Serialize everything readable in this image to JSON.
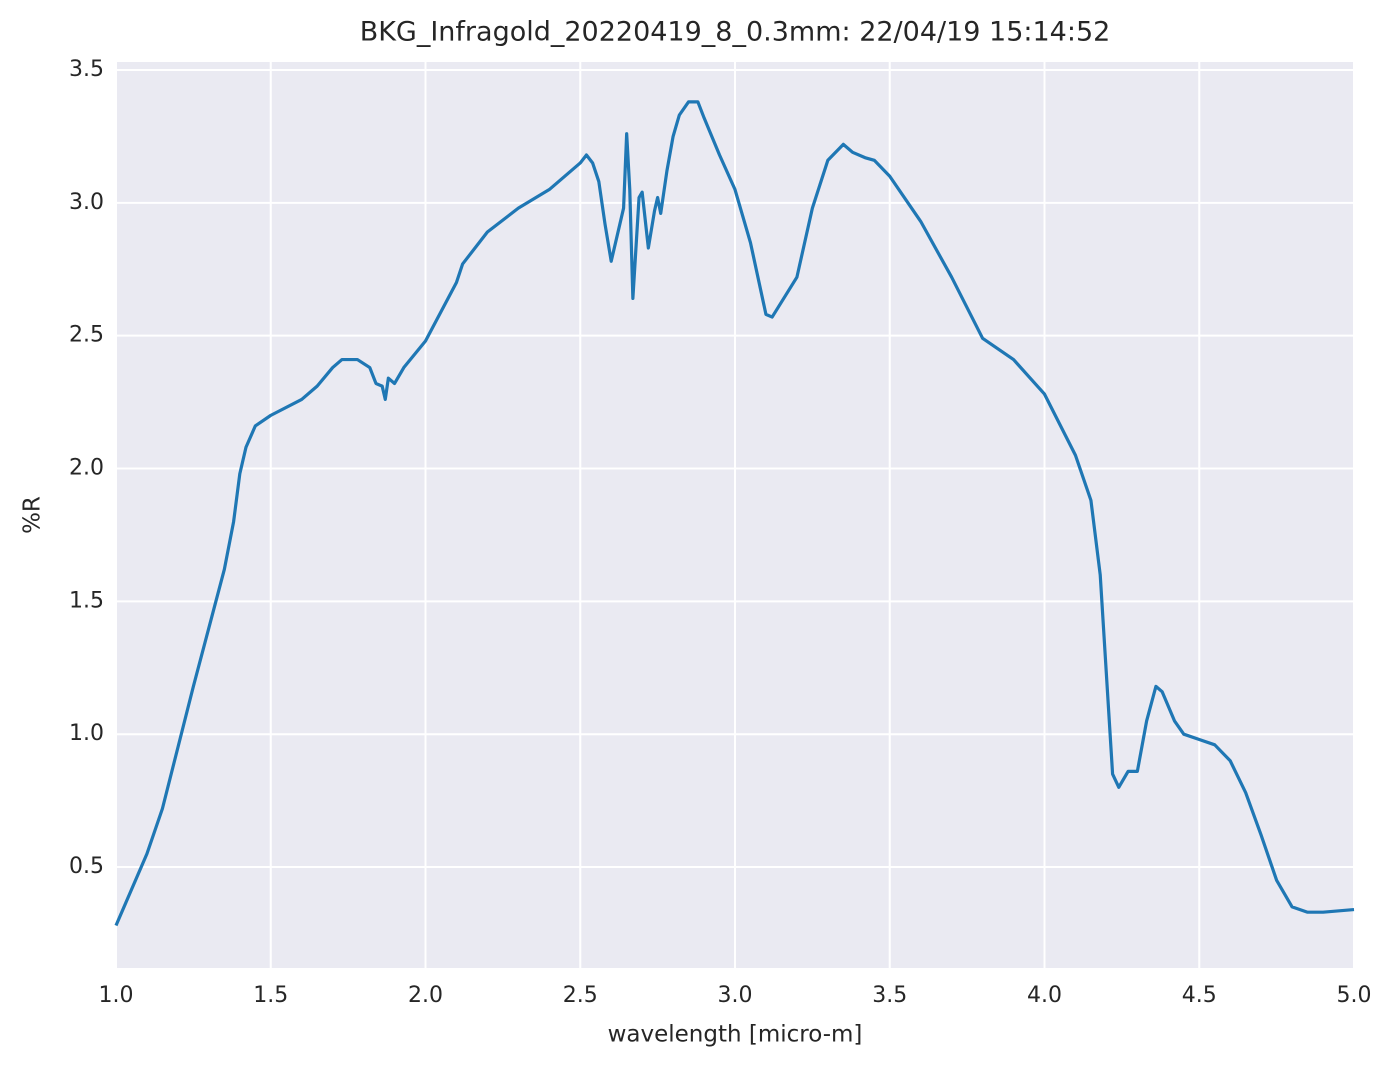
{
  "chart_data": {
    "type": "line",
    "title": "BKG_Infragold_20220419_8_0.3mm:  22/04/19 15:14:52",
    "x_label": "wavelength [micro-m]",
    "y_label": "%R",
    "x": [
      1.0,
      1.1,
      1.15,
      1.2,
      1.25,
      1.3,
      1.35,
      1.38,
      1.4,
      1.42,
      1.45,
      1.5,
      1.6,
      1.65,
      1.7,
      1.73,
      1.78,
      1.82,
      1.84,
      1.86,
      1.87,
      1.88,
      1.9,
      1.93,
      2.0,
      2.1,
      2.12,
      2.2,
      2.3,
      2.4,
      2.5,
      2.52,
      2.54,
      2.56,
      2.58,
      2.6,
      2.62,
      2.64,
      2.65,
      2.66,
      2.67,
      2.69,
      2.7,
      2.72,
      2.74,
      2.75,
      2.76,
      2.78,
      2.8,
      2.82,
      2.85,
      2.88,
      2.9,
      2.95,
      3.0,
      3.05,
      3.1,
      3.12,
      3.2,
      3.25,
      3.3,
      3.35,
      3.38,
      3.42,
      3.45,
      3.5,
      3.6,
      3.7,
      3.8,
      3.9,
      4.0,
      4.1,
      4.15,
      4.18,
      4.22,
      4.24,
      4.27,
      4.3,
      4.33,
      4.36,
      4.38,
      4.42,
      4.45,
      4.5,
      4.55,
      4.6,
      4.65,
      4.7,
      4.75,
      4.8,
      4.85,
      4.9,
      5.0
    ],
    "values": [
      0.28,
      0.55,
      0.72,
      0.95,
      1.18,
      1.4,
      1.62,
      1.8,
      1.98,
      2.08,
      2.16,
      2.2,
      2.26,
      2.31,
      2.38,
      2.41,
      2.41,
      2.38,
      2.32,
      2.31,
      2.26,
      2.34,
      2.32,
      2.38,
      2.48,
      2.7,
      2.77,
      2.89,
      2.98,
      3.05,
      3.15,
      3.18,
      3.15,
      3.08,
      2.92,
      2.78,
      2.88,
      2.98,
      3.26,
      3.05,
      2.64,
      3.02,
      3.04,
      2.83,
      2.97,
      3.02,
      2.96,
      3.12,
      3.25,
      3.33,
      3.38,
      3.38,
      3.32,
      3.18,
      3.05,
      2.85,
      2.58,
      2.57,
      2.72,
      2.98,
      3.16,
      3.22,
      3.19,
      3.17,
      3.16,
      3.1,
      2.93,
      2.72,
      2.49,
      2.41,
      2.28,
      2.05,
      1.88,
      1.6,
      0.85,
      0.8,
      0.86,
      0.86,
      1.05,
      1.18,
      1.16,
      1.05,
      1.0,
      0.98,
      0.96,
      0.9,
      0.78,
      0.62,
      0.45,
      0.35,
      0.33,
      0.33,
      0.34
    ],
    "color": "#1f77b4",
    "xlim": [
      1.0,
      5.0
    ],
    "ylim": [
      0.12,
      3.53
    ],
    "xticks": [
      {
        "value": 1.0,
        "label": "1.0"
      },
      1.5,
      {
        "value": 2.0,
        "label": "2.0"
      },
      2.5,
      {
        "value": 3.0,
        "label": "3.0"
      },
      3.5,
      {
        "value": 4.0,
        "label": "4.0"
      },
      4.5,
      {
        "value": 5.0,
        "label": "5.0"
      }
    ],
    "yticks": [
      0.5,
      {
        "value": 1.0,
        "label": "1.0"
      },
      1.5,
      {
        "value": 2.0,
        "label": "2.0"
      },
      2.5,
      {
        "value": 3.0,
        "label": "3.0"
      },
      3.5
    ],
    "grid": true
  }
}
